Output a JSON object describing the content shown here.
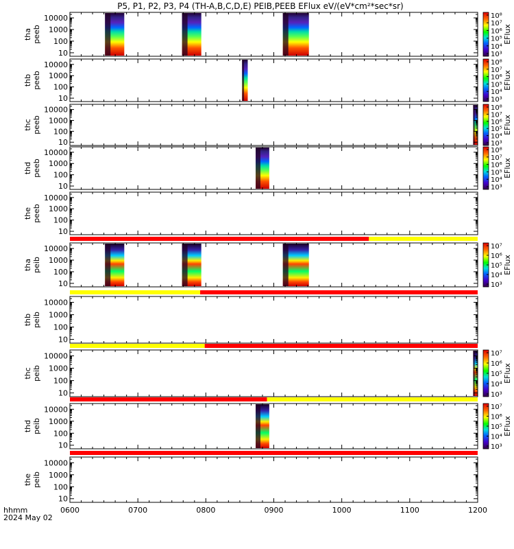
{
  "title": "P5, P1, P2, P3, P4 (TH-A,B,C,D,E) PEIB,PEEB EFlux eV/(eV*cm²*sec*sr)",
  "footer": {
    "time_label": "hhmm",
    "date_label": "2024 May 02"
  },
  "colorbar_label": "EFlux",
  "chart_data": {
    "type": "heatmap",
    "x_ticks": [
      "0600",
      "0700",
      "0800",
      "0900",
      "1000",
      "1100",
      "1200"
    ],
    "xlim": [
      "0600",
      "1200"
    ],
    "y_scale": "log",
    "y_ticks": [
      "10",
      "100",
      "1000",
      "10000"
    ],
    "panels": [
      {
        "probe": "tha",
        "instrument": "peeb",
        "ylim": [
          5,
          30000
        ],
        "intervals": [
          [
            "0631",
            "0648"
          ],
          [
            "0739",
            "0756"
          ],
          [
            "0908",
            "0931"
          ]
        ],
        "colorbar": {
          "ticks": [
            "10³",
            "10⁴",
            "10⁵",
            "10⁶",
            "10⁷",
            "10⁸"
          ]
        }
      },
      {
        "probe": "thb",
        "instrument": "peeb",
        "ylim": [
          5,
          30000
        ],
        "intervals": [
          [
            "0832",
            "0837"
          ]
        ],
        "colorbar": {
          "ticks": [
            "10³",
            "10⁴",
            "10⁵",
            "10⁶",
            "10⁷",
            "10⁸"
          ]
        }
      },
      {
        "probe": "thc",
        "instrument": "peeb",
        "ylim": [
          5,
          30000
        ],
        "intervals": [
          [
            "1156",
            "1207"
          ]
        ],
        "colorbar": {
          "ticks": [
            "10³",
            "10⁴",
            "10⁵",
            "10⁶",
            "10⁷",
            "10⁸"
          ]
        }
      },
      {
        "probe": "thd",
        "instrument": "peeb",
        "ylim": [
          5,
          30000
        ],
        "intervals": [
          [
            "0844",
            "0856"
          ]
        ],
        "colorbar": {
          "ticks": [
            "10³",
            "10⁴",
            "10⁵",
            "10⁶",
            "10⁷",
            "10⁸"
          ]
        }
      },
      {
        "probe": "the",
        "instrument": "peeb",
        "ylim": [
          5,
          30000
        ],
        "intervals": []
      },
      {
        "probe": "tha",
        "instrument": "peib",
        "ylim": [
          5,
          30000
        ],
        "intervals": [
          [
            "0631",
            "0648"
          ],
          [
            "0739",
            "0756"
          ],
          [
            "0908",
            "0931"
          ]
        ],
        "colorbar": {
          "ticks": [
            "10³",
            "10⁴",
            "10⁵",
            "10⁶",
            "10⁷"
          ]
        }
      },
      {
        "probe": "thb",
        "instrument": "peib",
        "ylim": [
          5,
          30000
        ],
        "intervals": []
      },
      {
        "probe": "thc",
        "instrument": "peib",
        "ylim": [
          5,
          30000
        ],
        "intervals": [
          [
            "1156",
            "1207"
          ]
        ],
        "colorbar": {
          "ticks": [
            "10³",
            "10⁴",
            "10⁵",
            "10⁶",
            "10⁷"
          ]
        }
      },
      {
        "probe": "thd",
        "instrument": "peib",
        "ylim": [
          5,
          30000
        ],
        "intervals": [
          [
            "0844",
            "0856"
          ]
        ],
        "colorbar": {
          "ticks": [
            "10³",
            "10⁴",
            "10⁵",
            "10⁶",
            "10⁷"
          ]
        }
      },
      {
        "probe": "the",
        "instrument": "peib",
        "ylim": [
          5,
          30000
        ],
        "intervals": []
      }
    ],
    "mode_bars": [
      {
        "above_panel": 6,
        "segments": [
          [
            "0600",
            "1024",
            "red"
          ],
          [
            "1024",
            "1200",
            "yellow"
          ]
        ]
      },
      {
        "above_panel": 7,
        "segments": [
          [
            "0600",
            "0755",
            "yellow"
          ],
          [
            "0755",
            "1200",
            "red"
          ]
        ]
      },
      {
        "above_panel": 8,
        "segments": [
          [
            "0600",
            "0759",
            "yellow"
          ],
          [
            "0759",
            "1200",
            "red"
          ]
        ]
      },
      {
        "above_panel": 9,
        "segments": [
          [
            "0600",
            "0854",
            "red"
          ],
          [
            "0854",
            "1200",
            "yellow"
          ]
        ]
      },
      {
        "above_panel": 10,
        "segments": [
          [
            "0600",
            "1200",
            "red"
          ]
        ]
      }
    ],
    "colors": {
      "red": "#ff0000",
      "yellow": "#ffff00"
    }
  }
}
